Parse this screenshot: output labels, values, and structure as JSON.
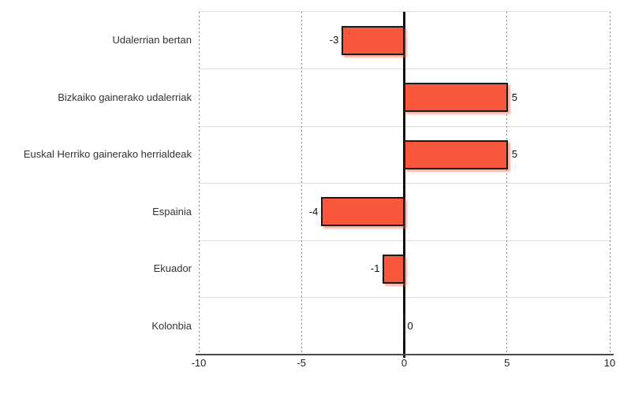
{
  "chart_data": {
    "type": "bar",
    "orientation": "horizontal",
    "title": "",
    "xlabel": "",
    "ylabel": "",
    "categories": [
      "Udalerrian bertan",
      "Bizkaiko gainerako udalerriak",
      "Euskal Herriko gainerako herrialdeak",
      "Espainia",
      "Ekuador",
      "Kolonbia"
    ],
    "values": [
      -3,
      5,
      5,
      -4,
      -1,
      0
    ],
    "value_labels": [
      "-3",
      "5",
      "5",
      "-4",
      "-1",
      "0"
    ],
    "xlim": [
      -10,
      10
    ],
    "x_ticks": [
      -10,
      -5,
      0,
      5,
      10
    ],
    "x_tick_labels": [
      "-10",
      "-5",
      "0",
      "5",
      "10"
    ],
    "gridlines": [
      -10,
      -5,
      5,
      10
    ],
    "grid": true,
    "legend": false
  },
  "colors": {
    "background": "#FFFFFF",
    "bar_fill": "#F9573C",
    "bar_border": "#1A1A1A",
    "bar_shadow": "rgba(249,100,70,0.50)",
    "zero_line": "#111111",
    "axis_line": "#4A4A4A",
    "gridline": "#868686",
    "separator": "#DDDDDD",
    "category_text": "#333333",
    "value_text": "#111111",
    "tick_text": "#222222"
  }
}
